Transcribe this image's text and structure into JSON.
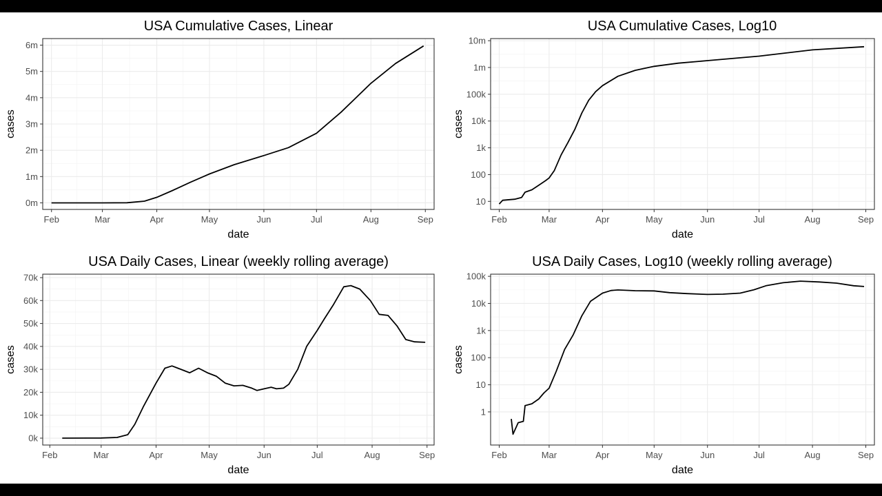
{
  "chart_data": [
    {
      "id": "cum_linear",
      "type": "line",
      "title": "USA Cumulative Cases, Linear",
      "xlabel": "date",
      "ylabel": "cases",
      "yscale": "linear",
      "xlim": [
        "2020-01-27",
        "2020-09-06"
      ],
      "ylim": [
        -250000,
        6250000
      ],
      "x_ticks": [
        {
          "date": "2020-02-01",
          "label": "Feb"
        },
        {
          "date": "2020-03-01",
          "label": "Mar"
        },
        {
          "date": "2020-04-01",
          "label": "Apr"
        },
        {
          "date": "2020-05-01",
          "label": "May"
        },
        {
          "date": "2020-06-01",
          "label": "Jun"
        },
        {
          "date": "2020-07-01",
          "label": "Jul"
        },
        {
          "date": "2020-08-01",
          "label": "Aug"
        },
        {
          "date": "2020-09-01",
          "label": "Sep"
        }
      ],
      "y_ticks": [
        {
          "value": 0,
          "label": "0m"
        },
        {
          "value": 1000000,
          "label": "1m"
        },
        {
          "value": 2000000,
          "label": "2m"
        },
        {
          "value": 3000000,
          "label": "3m"
        },
        {
          "value": 4000000,
          "label": "4m"
        },
        {
          "value": 5000000,
          "label": "5m"
        },
        {
          "value": 6000000,
          "label": "6m"
        }
      ],
      "grid": true,
      "series": [
        {
          "x": [
            "2020-02-01",
            "2020-03-01",
            "2020-03-15",
            "2020-03-25",
            "2020-04-01",
            "2020-04-10",
            "2020-04-20",
            "2020-05-01",
            "2020-05-15",
            "2020-06-01",
            "2020-06-15",
            "2020-07-01",
            "2020-07-15",
            "2020-08-01",
            "2020-08-15",
            "2020-08-31"
          ],
          "y": [
            10,
            70,
            3000,
            65000,
            210000,
            470000,
            780000,
            1100000,
            1450000,
            1800000,
            2100000,
            2650000,
            3450000,
            4550000,
            5300000,
            5970000
          ]
        }
      ]
    },
    {
      "id": "cum_log",
      "type": "line",
      "title": "USA Cumulative Cases, Log10",
      "xlabel": "date",
      "ylabel": "cases",
      "yscale": "log10",
      "xlim": [
        "2020-01-27",
        "2020-09-06"
      ],
      "ylim": [
        5,
        12000000
      ],
      "x_ticks": [
        {
          "date": "2020-02-01",
          "label": "Feb"
        },
        {
          "date": "2020-03-01",
          "label": "Mar"
        },
        {
          "date": "2020-04-01",
          "label": "Apr"
        },
        {
          "date": "2020-05-01",
          "label": "May"
        },
        {
          "date": "2020-06-01",
          "label": "Jun"
        },
        {
          "date": "2020-07-01",
          "label": "Jul"
        },
        {
          "date": "2020-08-01",
          "label": "Aug"
        },
        {
          "date": "2020-09-01",
          "label": "Sep"
        }
      ],
      "y_ticks": [
        {
          "value": 10,
          "label": "10"
        },
        {
          "value": 100,
          "label": "100"
        },
        {
          "value": 1000,
          "label": "1k"
        },
        {
          "value": 10000,
          "label": "10k"
        },
        {
          "value": 100000,
          "label": "100k"
        },
        {
          "value": 1000000,
          "label": "1m"
        },
        {
          "value": 10000000,
          "label": "10m"
        }
      ],
      "grid": true,
      "series": [
        {
          "x": [
            "2020-02-01",
            "2020-02-03",
            "2020-02-10",
            "2020-02-14",
            "2020-02-16",
            "2020-02-20",
            "2020-02-24",
            "2020-02-28",
            "2020-03-01",
            "2020-03-04",
            "2020-03-08",
            "2020-03-12",
            "2020-03-16",
            "2020-03-20",
            "2020-03-24",
            "2020-03-28",
            "2020-04-01",
            "2020-04-10",
            "2020-04-20",
            "2020-05-01",
            "2020-05-15",
            "2020-06-01",
            "2020-07-01",
            "2020-08-01",
            "2020-08-31"
          ],
          "y": [
            8,
            11,
            12,
            14,
            22,
            27,
            40,
            60,
            75,
            140,
            550,
            1600,
            5000,
            20000,
            60000,
            125000,
            210000,
            470000,
            780000,
            1100000,
            1450000,
            1800000,
            2650000,
            4550000,
            5970000
          ]
        }
      ]
    },
    {
      "id": "daily_linear",
      "type": "line",
      "title": "USA Daily Cases, Linear (weekly rolling average)",
      "xlabel": "date",
      "ylabel": "cases",
      "yscale": "linear",
      "xlim": [
        "2020-01-28",
        "2020-09-05"
      ],
      "ylim": [
        -3000,
        71500
      ],
      "x_ticks": [
        {
          "date": "2020-02-01",
          "label": "Feb"
        },
        {
          "date": "2020-03-01",
          "label": "Mar"
        },
        {
          "date": "2020-04-01",
          "label": "Apr"
        },
        {
          "date": "2020-05-01",
          "label": "May"
        },
        {
          "date": "2020-06-01",
          "label": "Jun"
        },
        {
          "date": "2020-07-01",
          "label": "Jul"
        },
        {
          "date": "2020-08-01",
          "label": "Aug"
        },
        {
          "date": "2020-09-01",
          "label": "Sep"
        }
      ],
      "y_ticks": [
        {
          "value": 0,
          "label": "0k"
        },
        {
          "value": 10000,
          "label": "10k"
        },
        {
          "value": 20000,
          "label": "20k"
        },
        {
          "value": 30000,
          "label": "30k"
        },
        {
          "value": 40000,
          "label": "40k"
        },
        {
          "value": 50000,
          "label": "50k"
        },
        {
          "value": 60000,
          "label": "60k"
        },
        {
          "value": 70000,
          "label": "70k"
        }
      ],
      "grid": true,
      "series": [
        {
          "x": [
            "2020-02-08",
            "2020-03-01",
            "2020-03-10",
            "2020-03-16",
            "2020-03-20",
            "2020-03-25",
            "2020-04-01",
            "2020-04-06",
            "2020-04-10",
            "2020-04-15",
            "2020-04-20",
            "2020-04-25",
            "2020-04-30",
            "2020-05-05",
            "2020-05-10",
            "2020-05-15",
            "2020-05-20",
            "2020-05-25",
            "2020-05-28",
            "2020-06-01",
            "2020-06-05",
            "2020-06-08",
            "2020-06-12",
            "2020-06-15",
            "2020-06-20",
            "2020-06-25",
            "2020-07-01",
            "2020-07-05",
            "2020-07-10",
            "2020-07-16",
            "2020-07-20",
            "2020-07-25",
            "2020-07-31",
            "2020-08-05",
            "2020-08-10",
            "2020-08-15",
            "2020-08-20",
            "2020-08-25",
            "2020-08-31"
          ],
          "y": [
            0,
            50,
            300,
            1500,
            6000,
            14000,
            24000,
            30500,
            31500,
            30000,
            28500,
            30500,
            28500,
            27000,
            24000,
            22800,
            23000,
            21800,
            20800,
            21500,
            22200,
            21500,
            21800,
            23500,
            30000,
            40000,
            47000,
            52000,
            58000,
            66000,
            66500,
            65000,
            60000,
            54000,
            53500,
            49000,
            43000,
            42000,
            41800
          ]
        }
      ]
    },
    {
      "id": "daily_log",
      "type": "line",
      "title": "USA Daily Cases, Log10 (weekly rolling average)",
      "xlabel": "date",
      "ylabel": "cases",
      "yscale": "log10",
      "xlim": [
        "2020-01-27",
        "2020-09-06"
      ],
      "ylim": [
        0.06,
        120000
      ],
      "x_ticks": [
        {
          "date": "2020-02-01",
          "label": "Feb"
        },
        {
          "date": "2020-03-01",
          "label": "Mar"
        },
        {
          "date": "2020-04-01",
          "label": "Apr"
        },
        {
          "date": "2020-05-01",
          "label": "May"
        },
        {
          "date": "2020-06-01",
          "label": "Jun"
        },
        {
          "date": "2020-07-01",
          "label": "Jul"
        },
        {
          "date": "2020-08-01",
          "label": "Aug"
        },
        {
          "date": "2020-09-01",
          "label": "Sep"
        }
      ],
      "y_ticks": [
        {
          "value": 1,
          "label": "1"
        },
        {
          "value": 10,
          "label": "10"
        },
        {
          "value": 100,
          "label": "100"
        },
        {
          "value": 1000,
          "label": "1k"
        },
        {
          "value": 10000,
          "label": "10k"
        },
        {
          "value": 100000,
          "label": "100k"
        }
      ],
      "grid": true,
      "series": [
        {
          "x": [
            "2020-02-08",
            "2020-02-09",
            "2020-02-12",
            "2020-02-15",
            "2020-02-16",
            "2020-02-20",
            "2020-02-24",
            "2020-02-27",
            "2020-03-01",
            "2020-03-05",
            "2020-03-10",
            "2020-03-15",
            "2020-03-20",
            "2020-03-25",
            "2020-04-01",
            "2020-04-06",
            "2020-04-10",
            "2020-04-20",
            "2020-05-01",
            "2020-05-10",
            "2020-05-20",
            "2020-06-01",
            "2020-06-10",
            "2020-06-20",
            "2020-06-28",
            "2020-07-05",
            "2020-07-15",
            "2020-07-25",
            "2020-08-05",
            "2020-08-15",
            "2020-08-25",
            "2020-08-31"
          ],
          "y": [
            0.55,
            0.15,
            0.4,
            0.45,
            1.7,
            2.0,
            3.0,
            5.0,
            7.5,
            30,
            200,
            700,
            3500,
            12000,
            24000,
            30000,
            31500,
            29500,
            29000,
            25000,
            23000,
            21500,
            22000,
            24000,
            32000,
            45000,
            58000,
            66500,
            62000,
            56000,
            45000,
            42000
          ]
        }
      ]
    }
  ]
}
